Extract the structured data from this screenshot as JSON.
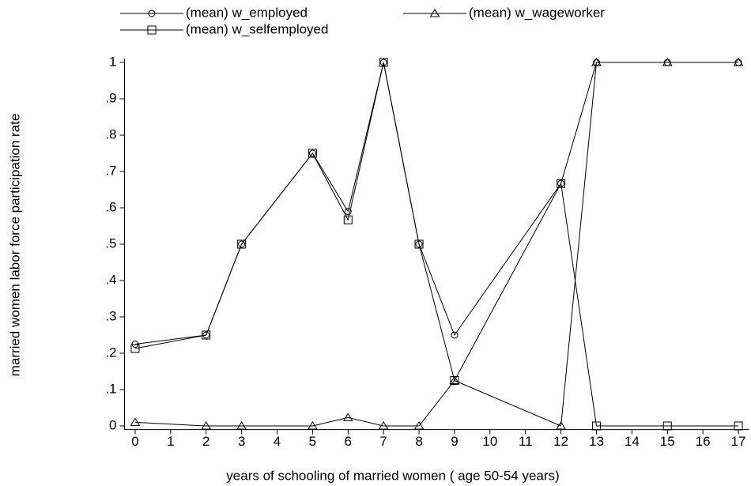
{
  "chart_data": {
    "type": "line",
    "x_label": "years of schooling of married women ( age 50-54 years)",
    "y_label": "married women labor force participation rate",
    "x": [
      0,
      2,
      3,
      5,
      6,
      7,
      8,
      9,
      12,
      13,
      15,
      17
    ],
    "series": [
      {
        "name": "(mean) w_employed",
        "color": "#000000",
        "marker": "circle",
        "values": [
          0.225,
          0.25,
          0.5,
          0.75,
          0.59,
          1,
          0.5,
          0.25,
          0.667,
          1,
          1,
          1
        ]
      },
      {
        "name": "(mean) w_wageworker",
        "color": "#000000",
        "marker": "triangle",
        "values": [
          0.01,
          0,
          0,
          0,
          0.023,
          0,
          0,
          0.125,
          0,
          1,
          1,
          1
        ]
      },
      {
        "name": "(mean) w_selfemployed",
        "color": "#000000",
        "marker": "square",
        "values": [
          0.213,
          0.25,
          0.5,
          0.75,
          0.567,
          1,
          0.5,
          0.125,
          0.667,
          0,
          0,
          0
        ]
      }
    ],
    "xlim": [
      -0.3,
      17.3
    ],
    "xticks": [
      0,
      1,
      2,
      3,
      4,
      5,
      6,
      7,
      8,
      9,
      10,
      11,
      12,
      13,
      14,
      15,
      16,
      17
    ],
    "ylim": [
      -0.01,
      1.01
    ],
    "yticks": [
      0,
      {
        "value": 0.1,
        "label": ".1"
      },
      {
        "value": 0.2,
        "label": ".2"
      },
      {
        "value": 0.3,
        "label": ".3"
      },
      {
        "value": 0.4,
        "label": ".4"
      },
      {
        "value": 0.5,
        "label": ".5"
      },
      {
        "value": 0.6,
        "label": ".6"
      },
      {
        "value": 0.7,
        "label": ".7"
      },
      {
        "value": 0.8,
        "label": ".8"
      },
      {
        "value": 0.9,
        "label": ".9"
      },
      1
    ],
    "grid": false,
    "legend_position": "top"
  }
}
